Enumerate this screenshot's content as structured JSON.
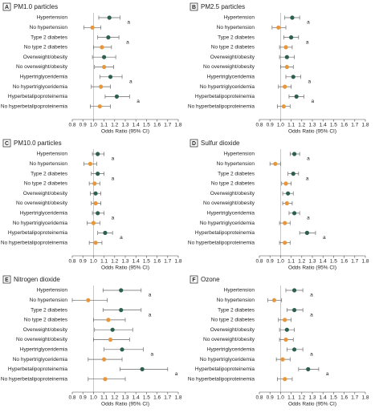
{
  "chart_data": [
    {
      "type": "forest",
      "panel": "A",
      "title": "PM1.0 particles",
      "xlabel": "Odds Ratio (95% CI)",
      "categories": [
        "Hypertension",
        "No hypertension",
        "Type 2 diabetes",
        "No type 2 diabetes",
        "Overweight/obesity",
        "No overweight/obesity",
        "Hypertriglyceridemia",
        "No hypertriglyceridemia",
        "Hyperbetalipoproteinemia",
        "No hyperbetalipoproteinemia"
      ],
      "values": [
        1.15,
        0.99,
        1.14,
        1.08,
        1.1,
        1.1,
        1.16,
        1.07,
        1.22,
        1.06
      ],
      "lower": [
        1.05,
        0.91,
        1.04,
        1.0,
        0.99,
        1.01,
        1.06,
        0.98,
        1.11,
        0.97
      ],
      "upper": [
        1.25,
        1.07,
        1.24,
        1.17,
        1.21,
        1.19,
        1.27,
        1.16,
        1.34,
        1.16
      ],
      "annotations": [
        "a",
        null,
        "a",
        null,
        null,
        null,
        "a",
        null,
        "a",
        null
      ],
      "colors": [
        "#2d5f50",
        "#e8963c"
      ],
      "refline": 1,
      "xlim": [
        0.8,
        1.8
      ],
      "xticks": [
        0.8,
        0.9,
        {
          "value": 1,
          "label": "1.0"
        },
        1.1,
        1.2,
        1.3,
        1.4,
        1.5,
        1.6,
        1.7,
        1.8
      ]
    },
    {
      "type": "forest",
      "panel": "B",
      "title": "PM2.5 particles",
      "xlabel": "Odds Ratio (95% CI)",
      "categories": [
        "Hypertension",
        "No hypertension",
        "Type 2 diabetes",
        "No type 2 diabetes",
        "Overweight/obesity",
        "No overweight/obesity",
        "Hypertriglyceridemia",
        "No hypertriglyceridemia",
        "Hyperbetalipoproteinemia",
        "No hyperbetalipoproteinemia"
      ],
      "values": [
        1.11,
        0.98,
        1.1,
        1.05,
        1.06,
        1.06,
        1.12,
        1.04,
        1.15,
        1.03
      ],
      "lower": [
        1.04,
        0.92,
        1.03,
        0.99,
        0.99,
        1.0,
        1.05,
        0.98,
        1.08,
        0.97
      ],
      "upper": [
        1.18,
        1.05,
        1.17,
        1.11,
        1.13,
        1.12,
        1.19,
        1.1,
        1.22,
        1.09
      ],
      "annotations": [
        "a",
        null,
        "a",
        null,
        null,
        null,
        "a",
        null,
        "a",
        null
      ],
      "colors": [
        "#2d5f50",
        "#e8963c"
      ],
      "refline": 1,
      "xlim": [
        0.8,
        1.8
      ],
      "xticks": [
        0.8,
        0.9,
        {
          "value": 1,
          "label": "1.0"
        },
        1.1,
        1.2,
        1.3,
        1.4,
        1.5,
        1.6,
        1.7,
        1.8
      ]
    },
    {
      "type": "forest",
      "panel": "C",
      "title": "PM10.0 particles",
      "xlabel": "Odds Ratio (95% CI)",
      "categories": [
        "Hypertension",
        "No hypertension",
        "Type 2 diabetes",
        "No type 2 diabetes",
        "Overweight/obesity",
        "No overweight/obesity",
        "Hypertriglyceridemia",
        "No hypertriglyceridemia",
        "Hyperbetalipoproteinemia",
        "No hyperbetalipoproteinemia"
      ],
      "values": [
        1.04,
        0.97,
        1.04,
        1.01,
        1.02,
        1.02,
        1.04,
        1.0,
        1.11,
        1.02
      ],
      "lower": [
        0.99,
        0.91,
        0.98,
        0.96,
        0.97,
        0.98,
        0.99,
        0.94,
        1.04,
        0.96
      ],
      "upper": [
        1.1,
        1.03,
        1.1,
        1.06,
        1.07,
        1.07,
        1.1,
        1.06,
        1.18,
        1.08
      ],
      "annotations": [
        "a",
        null,
        "a",
        null,
        null,
        null,
        "a",
        null,
        "a",
        null
      ],
      "colors": [
        "#2d5f50",
        "#e8963c"
      ],
      "refline": 1,
      "xlim": [
        0.8,
        1.8
      ],
      "xticks": [
        0.8,
        0.9,
        {
          "value": 1,
          "label": "1.0"
        },
        1.1,
        1.2,
        1.3,
        1.4,
        1.5,
        1.6,
        1.7,
        1.8
      ]
    },
    {
      "type": "forest",
      "panel": "D",
      "title": "Sulfur dioxide",
      "xlabel": "Odds Ratio (95% CI)",
      "categories": [
        "Hypertension",
        "No hypertension",
        "Type 2 diabetes",
        "No type 2 diabetes",
        "Overweight/obesity",
        "No overweight/obesity",
        "Hypertriglyceridemia",
        "No hypertriglyceridemia",
        "Hyperbetalipoproteinemia",
        "No hyperbetalipoproteinemia"
      ],
      "values": [
        1.13,
        0.95,
        1.12,
        1.05,
        1.07,
        1.06,
        1.13,
        1.04,
        1.25,
        1.04
      ],
      "lower": [
        1.09,
        0.9,
        1.07,
        1.01,
        1.02,
        1.02,
        1.08,
        0.99,
        1.18,
        0.99
      ],
      "upper": [
        1.18,
        1.0,
        1.17,
        1.1,
        1.12,
        1.11,
        1.18,
        1.09,
        1.33,
        1.09
      ],
      "annotations": [
        "a",
        null,
        "a",
        null,
        null,
        null,
        "a",
        null,
        "a",
        null
      ],
      "colors": [
        "#2d5f50",
        "#e8963c"
      ],
      "refline": 1,
      "xlim": [
        0.8,
        1.8
      ],
      "xticks": [
        0.8,
        0.9,
        {
          "value": 1,
          "label": "1.0"
        },
        1.1,
        1.2,
        1.3,
        1.4,
        1.5,
        1.6,
        1.7,
        1.8
      ]
    },
    {
      "type": "forest",
      "panel": "E",
      "title": "Nitrogen dioxide",
      "xlabel": "Odds Ratio (95% CI)",
      "categories": [
        "Hypertension",
        "No hypertension",
        "Type 2 diabetes",
        "No type 2 diabetes",
        "Overweight/obesity",
        "No overweight/obesity",
        "Hypertriglyceridemia",
        "No hypertriglyceridemia",
        "Hyperbetalipoproteinemia",
        "No hyperbetalipoproteinemia"
      ],
      "values": [
        1.26,
        0.95,
        1.26,
        1.14,
        1.18,
        1.16,
        1.27,
        1.1,
        1.46,
        1.11
      ],
      "lower": [
        1.09,
        0.8,
        1.09,
        1.0,
        1.01,
        1.0,
        1.1,
        0.95,
        1.25,
        0.95
      ],
      "upper": [
        1.45,
        1.13,
        1.45,
        1.3,
        1.37,
        1.34,
        1.47,
        1.27,
        1.7,
        1.3
      ],
      "annotations": [
        "a",
        null,
        "a",
        null,
        null,
        null,
        "a",
        null,
        "a",
        null
      ],
      "colors": [
        "#2d5f50",
        "#e8963c"
      ],
      "refline": 1,
      "xlim": [
        0.8,
        1.8
      ],
      "xticks": [
        0.8,
        0.9,
        {
          "value": 1,
          "label": "1.0"
        },
        1.1,
        1.2,
        1.3,
        1.4,
        1.5,
        1.6,
        1.7,
        1.8
      ]
    },
    {
      "type": "forest",
      "panel": "F",
      "title": "Ozone",
      "xlabel": "Odds Ratio (95% CI)",
      "categories": [
        "Hypertension",
        "No hypertension",
        "Type 2 diabetes",
        "No type 2 diabetes",
        "Overweight/obesity",
        "No overweight/obesity",
        "Hypertriglyceridemia",
        "No hypertriglyceridemia",
        "Hyperbetalipoproteinemia",
        "No hyperbetalipoproteinemia"
      ],
      "values": [
        1.13,
        0.94,
        1.13,
        1.04,
        1.06,
        1.05,
        1.13,
        1.02,
        1.26,
        1.04
      ],
      "lower": [
        1.05,
        0.88,
        1.06,
        0.98,
        0.99,
        0.99,
        1.06,
        0.96,
        1.17,
        0.97
      ],
      "upper": [
        1.21,
        1.01,
        1.21,
        1.1,
        1.13,
        1.12,
        1.21,
        1.09,
        1.36,
        1.11
      ],
      "annotations": [
        "a",
        null,
        "a",
        null,
        null,
        null,
        "a",
        null,
        "a",
        null
      ],
      "colors": [
        "#2d5f50",
        "#e8963c"
      ],
      "refline": 1,
      "xlim": [
        0.8,
        1.8
      ],
      "xticks": [
        0.8,
        0.9,
        {
          "value": 1,
          "label": "1.0"
        },
        1.1,
        1.2,
        1.3,
        1.4,
        1.5,
        1.6,
        1.7,
        1.8
      ]
    }
  ]
}
